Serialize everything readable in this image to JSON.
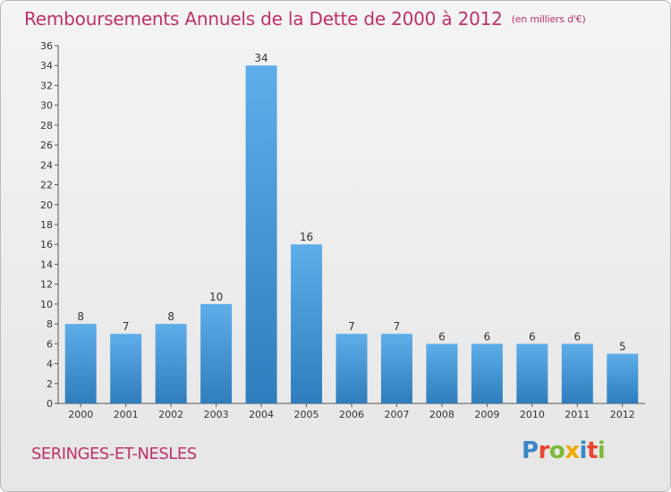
{
  "header": {
    "title": "Remboursements Annuels de la Dette de 2000 à 2012",
    "unit": "(en milliers d'€)"
  },
  "footer": {
    "city": "SERINGES-ET-NESLES",
    "logo": "Proxiti"
  },
  "colors": {
    "title": "#c0306a",
    "bar_top": "#5eaeea",
    "bar_bottom": "#2f7dbc",
    "logo_letters": [
      "#3a86c8",
      "#e9452f",
      "#7dba35",
      "#f2a900",
      "#3a86c8",
      "#e9452f",
      "#7dba35"
    ]
  },
  "chart_data": {
    "type": "bar",
    "title": "Remboursements Annuels de la Dette de 2000 à 2012",
    "subtitle": "(en milliers d'€)",
    "categories": [
      "2000",
      "2001",
      "2002",
      "2003",
      "2004",
      "2005",
      "2006",
      "2007",
      "2008",
      "2009",
      "2010",
      "2011",
      "2012"
    ],
    "values": [
      8,
      7,
      8,
      10,
      34,
      16,
      7,
      7,
      6,
      6,
      6,
      6,
      5
    ],
    "ylim": [
      0,
      36
    ],
    "yticks": [
      0,
      2,
      4,
      6,
      8,
      10,
      12,
      14,
      16,
      18,
      20,
      22,
      24,
      26,
      28,
      30,
      32,
      34,
      36
    ],
    "grid": false,
    "legend": "none"
  }
}
